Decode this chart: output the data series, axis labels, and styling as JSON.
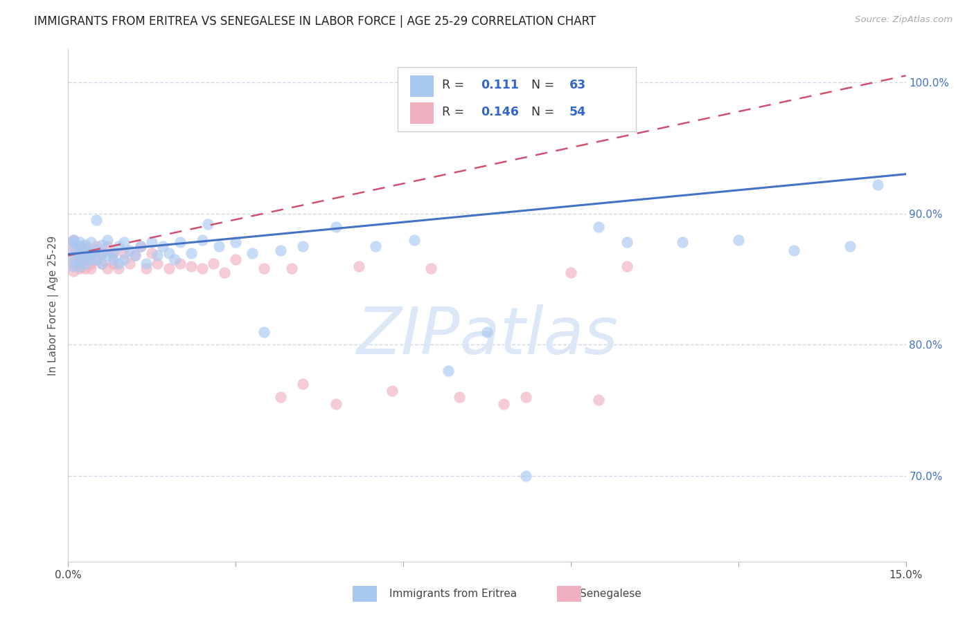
{
  "title": "IMMIGRANTS FROM ERITREA VS SENEGALESE IN LABOR FORCE | AGE 25-29 CORRELATION CHART",
  "source": "Source: ZipAtlas.com",
  "ylabel": "In Labor Force | Age 25-29",
  "xlim": [
    0.0,
    0.15
  ],
  "ylim": [
    0.635,
    1.025
  ],
  "xticks": [
    0.0,
    0.03,
    0.06,
    0.09,
    0.12,
    0.15
  ],
  "xtick_labels": [
    "0.0%",
    "",
    "",
    "",
    "",
    "15.0%"
  ],
  "yticks_right": [
    0.7,
    0.8,
    0.9,
    1.0
  ],
  "ytick_labels_right": [
    "70.0%",
    "80.0%",
    "90.0%",
    "100.0%"
  ],
  "grid_color": "#d0d8e8",
  "background_color": "#ffffff",
  "blue_color": "#a8c8f0",
  "pink_color": "#f0b0c0",
  "trend_blue_color": "#4472c4",
  "trend_pink_color": "#d05070",
  "watermark": "ZIPatlas",
  "watermark_color": "#dce8f8",
  "legend_blue_label": "R =  0.111   N = 63",
  "legend_pink_label": "R = 0.146   N = 54",
  "legend_color": "#2255aa",
  "eritrea_x": [
    0.001,
    0.001,
    0.001,
    0.001,
    0.001,
    0.002,
    0.002,
    0.002,
    0.002,
    0.002,
    0.003,
    0.003,
    0.003,
    0.003,
    0.004,
    0.004,
    0.004,
    0.005,
    0.005,
    0.005,
    0.006,
    0.006,
    0.006,
    0.007,
    0.007,
    0.008,
    0.008,
    0.009,
    0.009,
    0.01,
    0.01,
    0.011,
    0.012,
    0.013,
    0.014,
    0.015,
    0.016,
    0.017,
    0.018,
    0.019,
    0.02,
    0.022,
    0.024,
    0.025,
    0.027,
    0.03,
    0.033,
    0.035,
    0.038,
    0.042,
    0.048,
    0.055,
    0.062,
    0.068,
    0.075,
    0.082,
    0.095,
    0.1,
    0.11,
    0.12,
    0.13,
    0.14,
    0.145
  ],
  "eritrea_y": [
    0.88,
    0.872,
    0.865,
    0.86,
    0.878,
    0.875,
    0.87,
    0.865,
    0.86,
    0.878,
    0.872,
    0.868,
    0.862,
    0.876,
    0.87,
    0.865,
    0.878,
    0.872,
    0.865,
    0.895,
    0.87,
    0.862,
    0.876,
    0.868,
    0.88,
    0.87,
    0.865,
    0.875,
    0.862,
    0.878,
    0.865,
    0.872,
    0.868,
    0.875,
    0.862,
    0.878,
    0.868,
    0.875,
    0.87,
    0.865,
    0.878,
    0.87,
    0.88,
    0.892,
    0.875,
    0.878,
    0.87,
    0.81,
    0.872,
    0.875,
    0.89,
    0.875,
    0.88,
    0.78,
    0.81,
    0.7,
    0.89,
    0.878,
    0.878,
    0.88,
    0.872,
    0.875,
    0.922
  ],
  "senegal_x": [
    0.001,
    0.001,
    0.001,
    0.001,
    0.001,
    0.002,
    0.002,
    0.002,
    0.002,
    0.002,
    0.003,
    0.003,
    0.003,
    0.003,
    0.004,
    0.004,
    0.004,
    0.005,
    0.005,
    0.006,
    0.006,
    0.007,
    0.007,
    0.008,
    0.008,
    0.009,
    0.01,
    0.011,
    0.012,
    0.013,
    0.014,
    0.015,
    0.016,
    0.018,
    0.02,
    0.022,
    0.024,
    0.026,
    0.028,
    0.03,
    0.035,
    0.038,
    0.04,
    0.042,
    0.048,
    0.052,
    0.058,
    0.065,
    0.07,
    0.078,
    0.082,
    0.09,
    0.095,
    0.1
  ],
  "senegal_y": [
    0.875,
    0.868,
    0.862,
    0.856,
    0.88,
    0.87,
    0.865,
    0.858,
    0.875,
    0.862,
    0.87,
    0.865,
    0.858,
    0.875,
    0.862,
    0.87,
    0.858,
    0.865,
    0.875,
    0.862,
    0.87,
    0.858,
    0.875,
    0.862,
    0.87,
    0.858,
    0.87,
    0.862,
    0.868,
    0.875,
    0.858,
    0.87,
    0.862,
    0.858,
    0.862,
    0.86,
    0.858,
    0.862,
    0.855,
    0.865,
    0.858,
    0.76,
    0.858,
    0.77,
    0.755,
    0.86,
    0.765,
    0.858,
    0.76,
    0.755,
    0.76,
    0.855,
    0.758,
    0.86
  ],
  "blue_trend_x": [
    0.0,
    0.15
  ],
  "blue_trend_y": [
    0.869,
    0.93
  ],
  "pink_trend_x": [
    0.0,
    0.15
  ],
  "pink_trend_y": [
    0.868,
    1.005
  ]
}
